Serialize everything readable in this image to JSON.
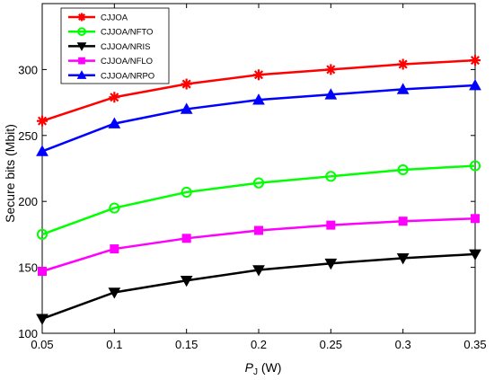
{
  "chart_data": {
    "type": "line",
    "x": [
      0.05,
      0.1,
      0.15,
      0.2,
      0.25,
      0.3,
      0.35
    ],
    "xlim": [
      0.05,
      0.35
    ],
    "ylim": [
      100,
      350
    ],
    "xticks": [
      "0.05",
      "0.1",
      "0.15",
      "0.2",
      "0.25",
      "0.3",
      "0.35"
    ],
    "yticks": [
      "100",
      "150",
      "200",
      "250",
      "300"
    ],
    "ytick_values": [
      100,
      150,
      200,
      250,
      300
    ],
    "xlabel_main": "P",
    "xlabel_sub": "J",
    "xlabel_unit": " (W)",
    "ylabel": "Secure bits (Mbit)",
    "grid": false,
    "legend_position": "top-left",
    "series": [
      {
        "name": "CJJOA",
        "color": "#ff0000",
        "marker": "asterisk",
        "values": [
          261,
          279,
          289,
          296,
          300,
          304,
          307
        ]
      },
      {
        "name": "CJJOA/NFTO",
        "color": "#00ff00",
        "marker": "circle",
        "values": [
          175,
          195,
          207,
          214,
          219,
          224,
          227
        ]
      },
      {
        "name": "CJJOA/NRIS",
        "color": "#000000",
        "marker": "triangle-down",
        "values": [
          111,
          131,
          140,
          148,
          153,
          157,
          160
        ]
      },
      {
        "name": "CJJOA/NFLO",
        "color": "#ff00ff",
        "marker": "square",
        "values": [
          147,
          164,
          172,
          178,
          182,
          185,
          187
        ]
      },
      {
        "name": "CJJOA/NRPO",
        "color": "#0000ff",
        "marker": "triangle-up",
        "values": [
          238,
          259,
          270,
          277,
          281,
          285,
          288
        ]
      }
    ]
  }
}
